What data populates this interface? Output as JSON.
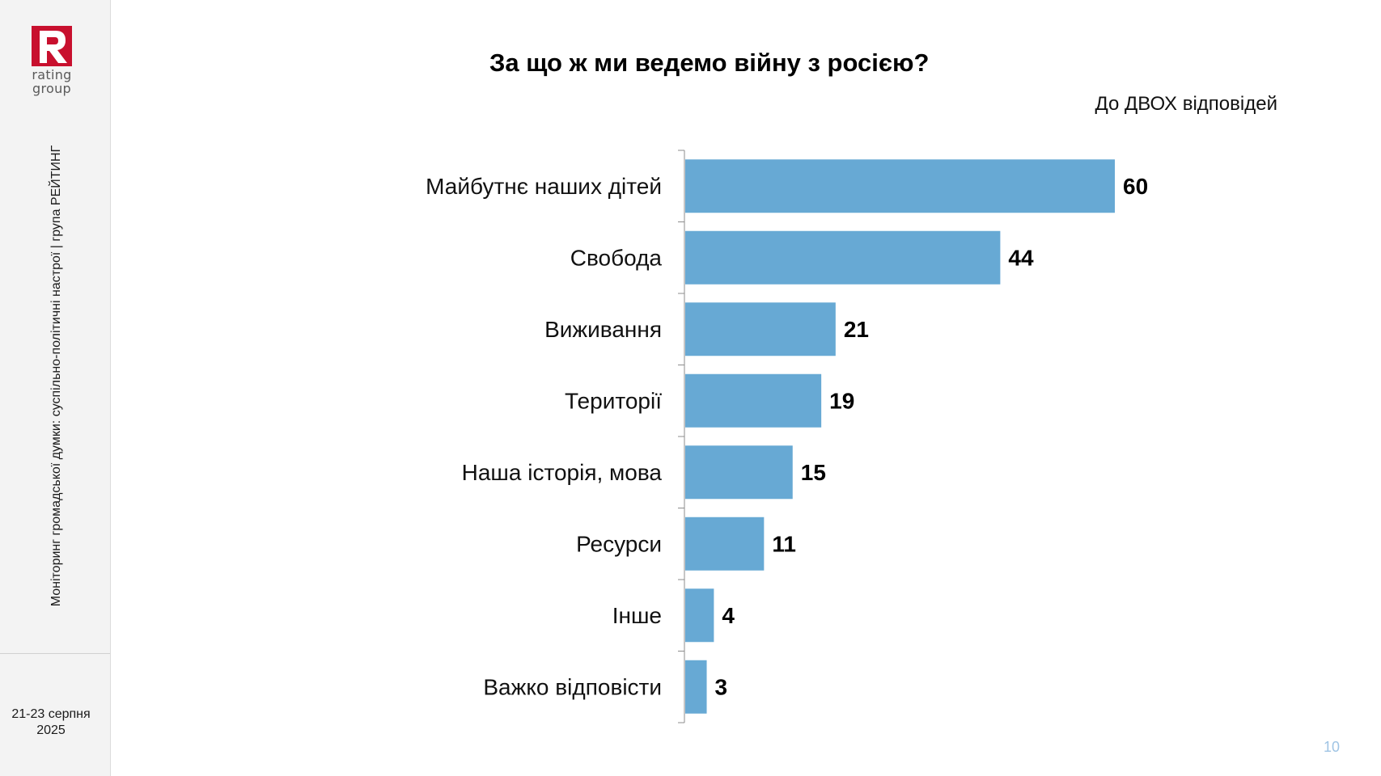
{
  "sidebar": {
    "logo_text_line1": "rating",
    "logo_text_line2": "group",
    "caption": "Моніторинг громадської думки: суспільно-політичні настрої | група РЕЙТИНГ",
    "date_line1": "21-23 серпня",
    "date_line2": "2025"
  },
  "colors": {
    "bar": "#67a9d4",
    "brand_red": "#c8102e",
    "page_number": "#9fc4e4"
  },
  "page_number": "10",
  "chart_data": {
    "type": "bar",
    "orientation": "horizontal",
    "title": "За що ж ми ведемо війну з росією?",
    "subtitle": "До ДВОХ відповідей",
    "categories": [
      "Майбутнє наших дітей",
      "Свобода",
      "Виживання",
      "Території",
      "Наша історія, мова",
      "Ресурси",
      "Інше",
      "Важко відповісти"
    ],
    "values": [
      60,
      44,
      21,
      19,
      15,
      11,
      4,
      3
    ],
    "xlim": [
      0,
      100
    ],
    "grid": false,
    "legend": "none"
  }
}
